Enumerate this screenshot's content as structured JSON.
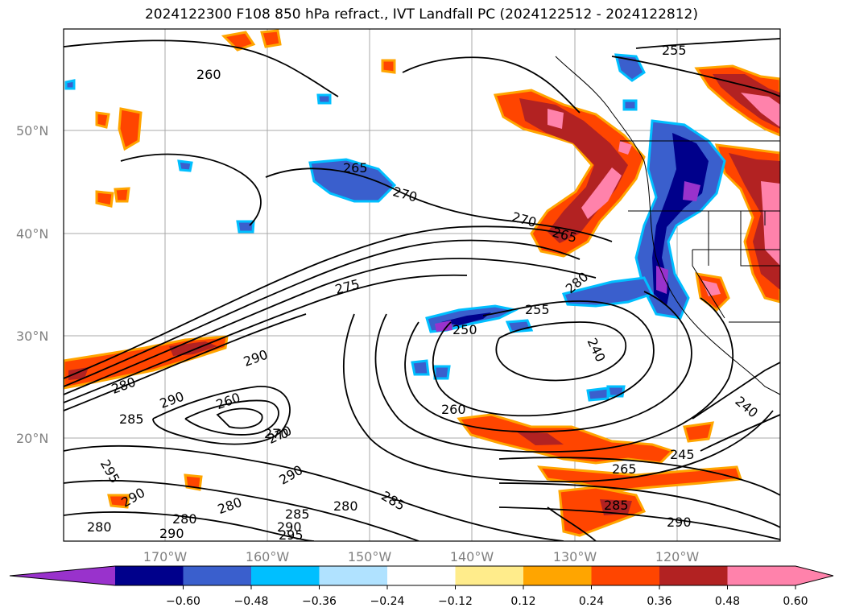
{
  "title": "2024122300 F108 850 hPa refract., IVT Landfall PC (2024122512 - 2024122812)",
  "axes": {
    "lat_labels": [
      "50°N",
      "40°N",
      "30°N",
      "20°N"
    ],
    "lon_labels": [
      "170°W",
      "160°W",
      "150°W",
      "140°W",
      "130°W",
      "120°W"
    ]
  },
  "colorbar": {
    "tick_labels": [
      "-0.60",
      "-0.48",
      "-0.36",
      "-0.24",
      "-0.12",
      "0.12",
      "0.24",
      "0.36",
      "0.48",
      "0.60"
    ],
    "colors": [
      "#9932CC",
      "#00008B",
      "#3A5FCD",
      "#00BFFF",
      "#B0E2FF",
      "#FFFFFF",
      "#FFEC8B",
      "#FFA500",
      "#FF4500",
      "#B22222",
      "#FF82AB",
      "#FF82AB"
    ]
  },
  "contour_labels": [
    {
      "text": "255"
    },
    {
      "text": "260"
    },
    {
      "text": "265"
    },
    {
      "text": "270"
    },
    {
      "text": "270"
    },
    {
      "text": "265"
    },
    {
      "text": "275"
    },
    {
      "text": "280"
    },
    {
      "text": "255"
    },
    {
      "text": "250"
    },
    {
      "text": "240"
    },
    {
      "text": "290"
    },
    {
      "text": "280"
    },
    {
      "text": "290"
    },
    {
      "text": "285"
    },
    {
      "text": "260"
    },
    {
      "text": "270"
    },
    {
      "text": "290"
    },
    {
      "text": "245"
    },
    {
      "text": "265"
    },
    {
      "text": "240"
    },
    {
      "text": "290"
    },
    {
      "text": "285"
    },
    {
      "text": "285"
    },
    {
      "text": "280"
    },
    {
      "text": "290"
    },
    {
      "text": "280"
    },
    {
      "text": "285"
    },
    {
      "text": "290"
    },
    {
      "text": "295"
    },
    {
      "text": "280"
    },
    {
      "text": "280"
    },
    {
      "text": "295"
    },
    {
      "text": "290"
    },
    {
      "text": "270"
    },
    {
      "text": "260"
    }
  ]
}
